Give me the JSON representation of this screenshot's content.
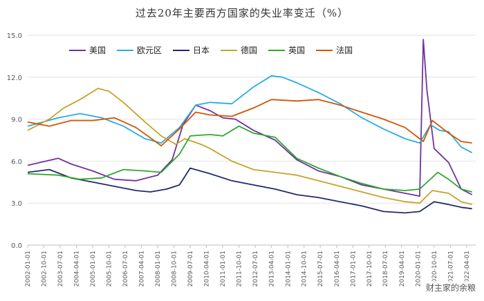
{
  "chart_data": {
    "type": "line",
    "title": "过去20年主要西方国家的失业率变迁（%）",
    "ylim": [
      0,
      15
    ],
    "yticks": [
      "0.0",
      "3.0",
      "6.0",
      "9.0",
      "12.0",
      "15.0"
    ],
    "grid": "horizontal",
    "legend_position": "top-left",
    "x_tick_labels": [
      "2002-01-01",
      "2002-10-01",
      "2003-07-01",
      "2004-04-01",
      "2005-01-01",
      "2005-10-01",
      "2006-07-01",
      "2007-04-01",
      "2008-01-01",
      "2008-10-01",
      "2009-07-01",
      "2010-04-01",
      "2011-01-01",
      "2011-10-01",
      "2012-07-01",
      "2013-04-01",
      "2014-01-01",
      "2014-10-01",
      "2015-07-01",
      "2016-04-01",
      "2017-01-01",
      "2017-10-01",
      "2018-07-01",
      "2019-04-01",
      "2020-01-01",
      "2020-10-01",
      "2021-07-01",
      "2022-04-01"
    ],
    "series": [
      {
        "name": "美国",
        "color": "#7030A0",
        "x": [
          "2002-01-01",
          "2003-06-01",
          "2004-01-01",
          "2005-01-01",
          "2006-01-01",
          "2007-01-01",
          "2008-01-01",
          "2008-09-01",
          "2009-03-01",
          "2009-10-01",
          "2010-06-01",
          "2011-01-01",
          "2011-08-01",
          "2012-06-01",
          "2013-06-01",
          "2014-06-01",
          "2015-06-01",
          "2016-06-01",
          "2017-06-01",
          "2018-06-01",
          "2019-06-01",
          "2020-02-01",
          "2020-04-01",
          "2020-06-01",
          "2020-10-01",
          "2021-06-01",
          "2022-01-01",
          "2022-07-01"
        ],
        "values": [
          5.7,
          6.2,
          5.8,
          5.3,
          4.7,
          4.6,
          5.0,
          6.1,
          8.6,
          10.0,
          9.6,
          9.1,
          9.0,
          8.2,
          7.5,
          6.1,
          5.3,
          4.9,
          4.3,
          4.0,
          3.7,
          3.5,
          14.7,
          11.1,
          6.9,
          5.9,
          4.0,
          3.6
        ]
      },
      {
        "name": "欧元区",
        "color": "#29ABE2",
        "x": [
          "2002-01-01",
          "2003-06-01",
          "2004-06-01",
          "2005-06-01",
          "2006-06-01",
          "2007-06-01",
          "2008-03-01",
          "2009-01-01",
          "2009-10-01",
          "2010-06-01",
          "2011-06-01",
          "2012-06-01",
          "2013-04-01",
          "2013-10-01",
          "2014-06-01",
          "2015-06-01",
          "2016-06-01",
          "2017-06-01",
          "2018-06-01",
          "2019-06-01",
          "2020-02-01",
          "2020-08-01",
          "2021-01-01",
          "2021-06-01",
          "2022-01-01",
          "2022-07-01"
        ],
        "values": [
          8.5,
          9.1,
          9.4,
          9.1,
          8.5,
          7.6,
          7.3,
          8.4,
          10.0,
          10.2,
          10.1,
          11.3,
          12.1,
          12.0,
          11.6,
          10.9,
          10.1,
          9.1,
          8.3,
          7.6,
          7.3,
          8.6,
          8.2,
          8.1,
          7.0,
          6.6
        ]
      },
      {
        "name": "日本",
        "color": "#1F2A6B",
        "x": [
          "2002-01-01",
          "2003-01-01",
          "2004-01-01",
          "2005-01-01",
          "2006-01-01",
          "2007-01-01",
          "2007-09-01",
          "2008-06-01",
          "2009-01-01",
          "2009-07-01",
          "2010-06-01",
          "2011-06-01",
          "2012-06-01",
          "2013-06-01",
          "2014-06-01",
          "2015-06-01",
          "2016-06-01",
          "2017-06-01",
          "2018-06-01",
          "2019-06-01",
          "2020-02-01",
          "2020-10-01",
          "2021-06-01",
          "2022-01-01",
          "2022-07-01"
        ],
        "values": [
          5.2,
          5.4,
          4.8,
          4.5,
          4.2,
          3.9,
          3.8,
          4.0,
          4.3,
          5.5,
          5.1,
          4.6,
          4.3,
          4.0,
          3.6,
          3.4,
          3.1,
          2.8,
          2.4,
          2.3,
          2.4,
          3.1,
          2.9,
          2.7,
          2.6
        ]
      },
      {
        "name": "德国",
        "color": "#C9A227",
        "x": [
          "2002-01-01",
          "2003-01-01",
          "2003-09-01",
          "2004-06-01",
          "2005-04-01",
          "2005-10-01",
          "2006-06-01",
          "2007-06-01",
          "2008-03-01",
          "2008-11-01",
          "2009-04-01",
          "2010-01-01",
          "2010-06-01",
          "2011-06-01",
          "2012-06-01",
          "2013-06-01",
          "2014-06-01",
          "2015-06-01",
          "2016-06-01",
          "2017-06-01",
          "2018-06-01",
          "2019-06-01",
          "2020-02-01",
          "2020-09-01",
          "2021-06-01",
          "2022-01-01",
          "2022-07-01"
        ],
        "values": [
          8.2,
          9.0,
          9.8,
          10.4,
          11.2,
          11.0,
          10.2,
          8.8,
          7.8,
          7.2,
          7.6,
          7.2,
          6.9,
          6.0,
          5.4,
          5.2,
          5.0,
          4.6,
          4.2,
          3.8,
          3.4,
          3.1,
          3.0,
          3.9,
          3.7,
          3.1,
          2.9
        ]
      },
      {
        "name": "英国",
        "color": "#2CA82C",
        "x": [
          "2002-01-01",
          "2003-06-01",
          "2004-06-01",
          "2005-06-01",
          "2006-06-01",
          "2007-06-01",
          "2008-03-01",
          "2009-01-01",
          "2009-07-01",
          "2010-06-01",
          "2011-01-01",
          "2011-10-01",
          "2012-06-01",
          "2013-06-01",
          "2014-06-01",
          "2015-06-01",
          "2016-06-01",
          "2017-06-01",
          "2018-06-01",
          "2019-06-01",
          "2020-02-01",
          "2020-12-01",
          "2021-06-01",
          "2022-01-01",
          "2022-07-01"
        ],
        "values": [
          5.1,
          5.0,
          4.7,
          4.8,
          5.4,
          5.3,
          5.2,
          6.5,
          7.8,
          7.9,
          7.8,
          8.5,
          8.0,
          7.7,
          6.2,
          5.5,
          4.9,
          4.4,
          4.0,
          3.9,
          4.0,
          5.2,
          4.7,
          4.0,
          3.8
        ]
      },
      {
        "name": "法国",
        "color": "#D35400",
        "x": [
          "2002-01-01",
          "2003-01-01",
          "2004-01-01",
          "2005-01-01",
          "2006-01-01",
          "2007-01-01",
          "2008-03-01",
          "2009-01-01",
          "2009-10-01",
          "2010-06-01",
          "2011-06-01",
          "2012-06-01",
          "2013-04-01",
          "2014-06-01",
          "2015-06-01",
          "2016-06-01",
          "2017-06-01",
          "2018-06-01",
          "2019-06-01",
          "2020-04-01",
          "2020-09-01",
          "2021-06-01",
          "2022-01-01",
          "2022-07-01"
        ],
        "values": [
          8.8,
          8.5,
          8.9,
          8.9,
          9.1,
          8.4,
          7.1,
          8.3,
          9.5,
          9.3,
          9.2,
          9.8,
          10.4,
          10.3,
          10.4,
          10.0,
          9.5,
          9.0,
          8.4,
          7.4,
          8.9,
          8.0,
          7.4,
          7.3
        ]
      }
    ]
  },
  "watermark": "财主家的余粮"
}
